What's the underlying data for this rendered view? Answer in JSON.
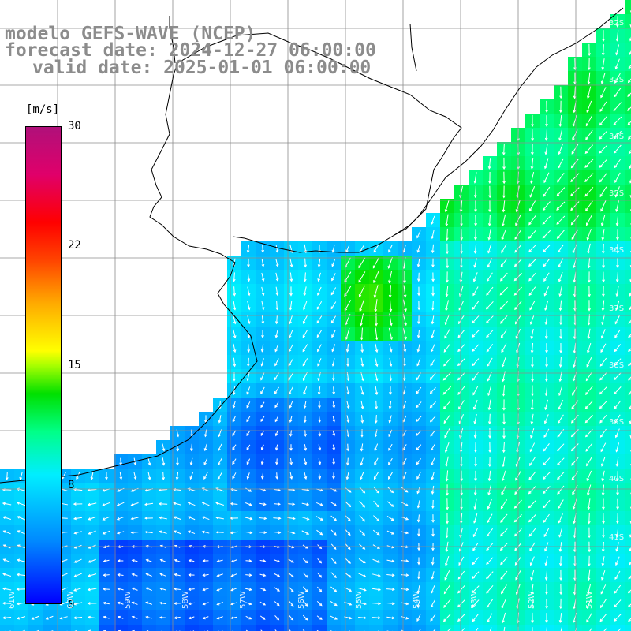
{
  "title": {
    "model": "modelo GEFS-WAVE (NCEP)",
    "forecast": "forecast date: 2024-12-27 06:00:00",
    "valid": "valid date: 2025-01-01 06:00:00"
  },
  "colorbar": {
    "unit": "[m/s]",
    "ticks": [
      "30",
      "22",
      "15",
      "8",
      "0"
    ],
    "tick_values": [
      30,
      22,
      15,
      8,
      0
    ],
    "min": 0,
    "max": 30
  },
  "grid": {
    "lat_labels": [
      "32S",
      "33S",
      "34S",
      "35S",
      "36S",
      "37S",
      "38S",
      "39S",
      "40S",
      "41S"
    ],
    "lon_labels": [
      "61W",
      "60W",
      "59W",
      "58W",
      "57W",
      "56W",
      "55W",
      "54W",
      "53W",
      "52W",
      "51W"
    ]
  },
  "colors": {
    "land": "#ffffff",
    "coast": "#000000",
    "gridline": "#8c8c8c",
    "title": "#8c8c8c",
    "arrow": "#ffffff"
  }
}
